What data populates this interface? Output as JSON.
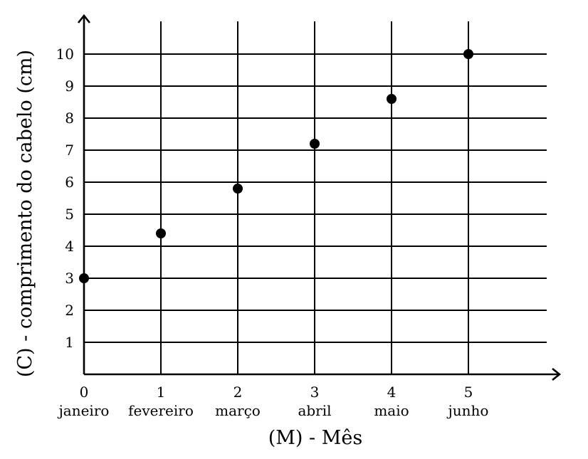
{
  "chart_data": {
    "type": "scatter",
    "title": "",
    "xlabel": "(M) - Mês",
    "ylabel": "(C) - comprimento do cabelo (cm)",
    "x_ticks": [
      0,
      1,
      2,
      3,
      4,
      5
    ],
    "x_tick_labels": [
      "0",
      "1",
      "2",
      "3",
      "4",
      "5"
    ],
    "x_category_labels": [
      "janeiro",
      "fevereiro",
      "março",
      "abril",
      "maio",
      "junho"
    ],
    "y_ticks": [
      1,
      2,
      3,
      4,
      5,
      6,
      7,
      8,
      9,
      10
    ],
    "y_tick_labels": [
      "1",
      "2",
      "3",
      "4",
      "5",
      "6",
      "7",
      "8",
      "9",
      "10"
    ],
    "xlim": [
      0,
      6.2
    ],
    "ylim": [
      0,
      11.2
    ],
    "grid": true,
    "series": [
      {
        "x": [
          0,
          1,
          2,
          3,
          4,
          5
        ],
        "y": [
          3,
          4.4,
          5.8,
          7.2,
          8.6,
          10
        ]
      }
    ]
  }
}
